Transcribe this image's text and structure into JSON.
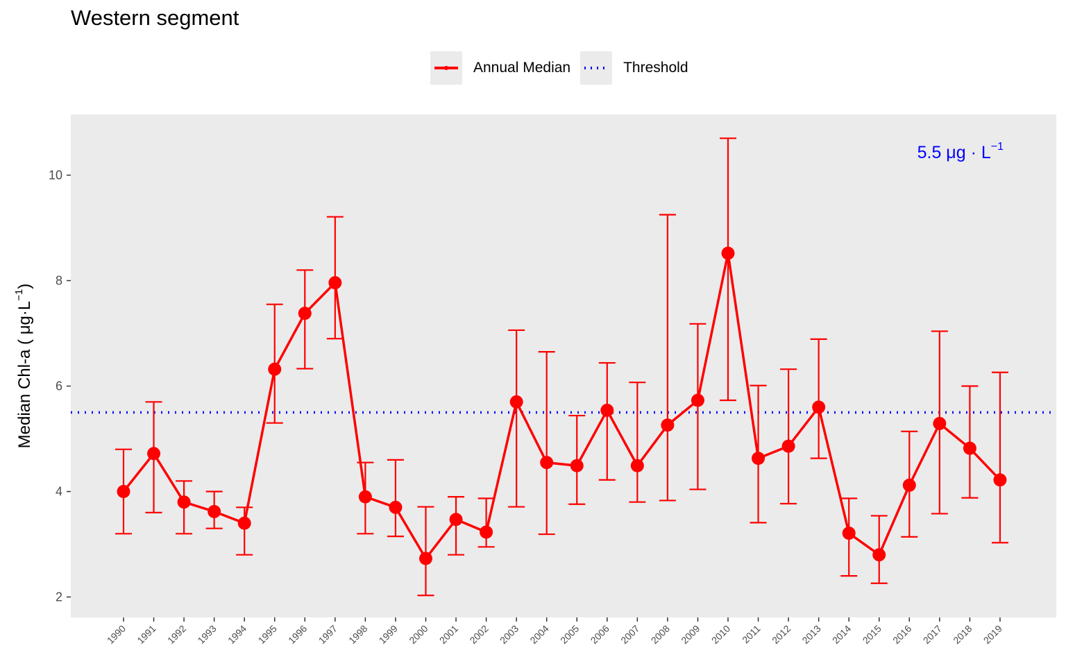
{
  "chart_data": {
    "type": "line",
    "title": "Western segment",
    "xlabel": "",
    "ylabel": "Median Chl-a ( μg·L",
    "ylabel_sup": "−1",
    "ylabel_close": ")",
    "categories": [
      "1990",
      "1991",
      "1992",
      "1993",
      "1994",
      "1995",
      "1996",
      "1997",
      "1998",
      "1999",
      "2000",
      "2001",
      "2002",
      "2003",
      "2004",
      "2005",
      "2006",
      "2007",
      "2008",
      "2009",
      "2010",
      "2011",
      "2012",
      "2013",
      "2014",
      "2015",
      "2016",
      "2017",
      "2018",
      "2019"
    ],
    "series": [
      {
        "name": "Annual Median",
        "color": "#ff0000",
        "values": [
          4.0,
          4.72,
          3.8,
          3.62,
          3.4,
          6.32,
          7.38,
          7.96,
          3.9,
          3.7,
          2.73,
          3.47,
          3.23,
          5.7,
          4.55,
          4.49,
          5.54,
          4.49,
          5.26,
          5.73,
          8.52,
          4.63,
          4.86,
          5.6,
          3.21,
          2.8,
          4.12,
          5.29,
          4.82,
          4.22
        ],
        "lower": [
          3.2,
          3.6,
          3.2,
          3.3,
          2.8,
          5.3,
          6.33,
          6.9,
          3.2,
          3.15,
          2.03,
          2.8,
          2.95,
          3.71,
          3.19,
          3.76,
          4.22,
          3.8,
          3.83,
          4.04,
          5.73,
          3.41,
          3.77,
          4.63,
          2.4,
          2.26,
          3.14,
          3.58,
          3.88,
          3.03
        ],
        "upper": [
          4.8,
          5.7,
          4.2,
          4.0,
          3.7,
          7.55,
          8.2,
          9.21,
          4.55,
          4.6,
          3.71,
          3.9,
          3.87,
          7.06,
          6.65,
          5.44,
          6.44,
          6.07,
          9.25,
          7.18,
          10.7,
          6.01,
          6.32,
          6.89,
          3.87,
          3.54,
          5.14,
          7.04,
          6.0,
          6.26
        ]
      }
    ],
    "threshold": {
      "name": "Threshold",
      "value": 5.5,
      "color": "#0000ff",
      "style": "dotted"
    },
    "annotation": {
      "text": "5.5 μg · L",
      "sup": "−1",
      "color": "#0000ff",
      "placement": "top-right"
    },
    "yticks": [
      "2",
      "4",
      "6",
      "8",
      "10"
    ],
    "ylim": [
      1.6,
      11.2
    ],
    "grid": false,
    "panel_background": "#ebebeb",
    "legend_placement": "top",
    "legend": [
      "Annual Median",
      "Threshold"
    ]
  }
}
